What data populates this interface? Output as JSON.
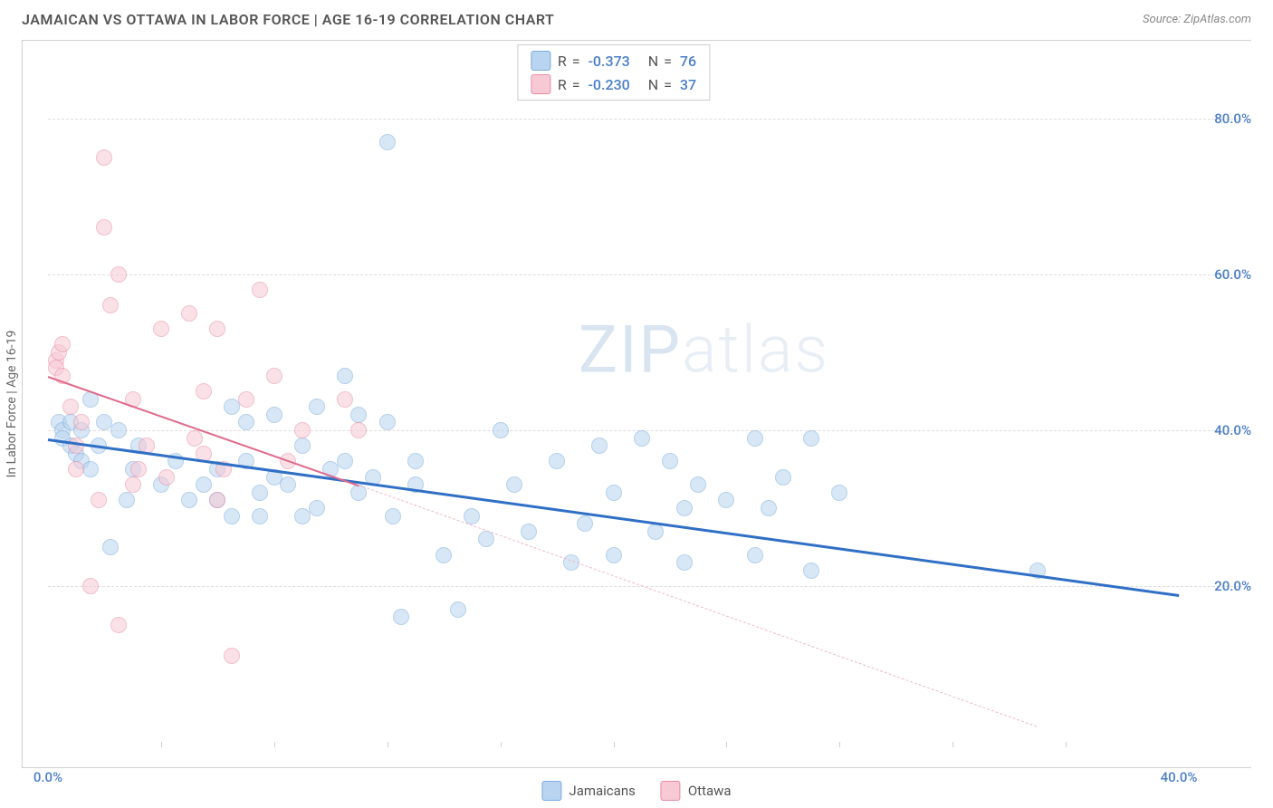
{
  "title": "JAMAICAN VS OTTAWA IN LABOR FORCE | AGE 16-19 CORRELATION CHART",
  "source": "Source: ZipAtlas.com",
  "watermark_bold": "ZIP",
  "watermark_light": "atlas",
  "chart": {
    "type": "scatter",
    "xlim": [
      0,
      40
    ],
    "ylim": [
      0,
      90
    ],
    "x_min_label": "0.0%",
    "x_max_label": "40.0%",
    "y_ticks": [
      20,
      40,
      60,
      80
    ],
    "y_tick_labels": [
      "20.0%",
      "40.0%",
      "60.0%",
      "80.0%"
    ],
    "x_tick_positions": [
      4,
      8,
      12,
      16,
      20,
      24,
      28,
      32,
      36
    ],
    "y_axis_label": "In Labor Force | Age 16-19",
    "background_color": "#ffffff",
    "grid_color": "#dddddd",
    "marker_radius": 9,
    "marker_opacity": 0.55,
    "series": [
      {
        "name": "Jamaicans",
        "color_fill": "#b8d4f0",
        "color_stroke": "#7aabdc",
        "R": "-0.373",
        "N": "76",
        "trend": {
          "x1": 0,
          "y1": 39,
          "x2": 40,
          "y2": 19,
          "color": "#2f6fc5",
          "width": 3
        },
        "points": [
          [
            0.4,
            41
          ],
          [
            0.5,
            40
          ],
          [
            0.5,
            39
          ],
          [
            0.8,
            41
          ],
          [
            0.8,
            38
          ],
          [
            1.0,
            37
          ],
          [
            1.2,
            40
          ],
          [
            1.2,
            36
          ],
          [
            1.5,
            35
          ],
          [
            1.8,
            38
          ],
          [
            2.0,
            41
          ],
          [
            2.2,
            25
          ],
          [
            2.5,
            40
          ],
          [
            3.0,
            35
          ],
          [
            3.2,
            38
          ],
          [
            4.0,
            33
          ],
          [
            4.5,
            36
          ],
          [
            5.0,
            31
          ],
          [
            5.5,
            33
          ],
          [
            6.0,
            35
          ],
          [
            6.0,
            31
          ],
          [
            6.5,
            29
          ],
          [
            6.5,
            43
          ],
          [
            7.0,
            36
          ],
          [
            7.0,
            41
          ],
          [
            7.5,
            32
          ],
          [
            7.5,
            29
          ],
          [
            8.0,
            42
          ],
          [
            8.0,
            34
          ],
          [
            8.5,
            33
          ],
          [
            9.0,
            38
          ],
          [
            9.0,
            29
          ],
          [
            9.5,
            43
          ],
          [
            9.5,
            30
          ],
          [
            10.0,
            35
          ],
          [
            10.5,
            47
          ],
          [
            10.5,
            36
          ],
          [
            11.0,
            32
          ],
          [
            11.0,
            42
          ],
          [
            11.5,
            34
          ],
          [
            12.0,
            41
          ],
          [
            12.0,
            77
          ],
          [
            12.2,
            29
          ],
          [
            12.5,
            16
          ],
          [
            13.0,
            36
          ],
          [
            13.0,
            33
          ],
          [
            14.0,
            24
          ],
          [
            14.5,
            17
          ],
          [
            15.0,
            29
          ],
          [
            15.5,
            26
          ],
          [
            16.0,
            40
          ],
          [
            16.5,
            33
          ],
          [
            17.0,
            27
          ],
          [
            18.0,
            36
          ],
          [
            18.5,
            23
          ],
          [
            19.0,
            28
          ],
          [
            19.5,
            38
          ],
          [
            20.0,
            32
          ],
          [
            20.0,
            24
          ],
          [
            21.0,
            39
          ],
          [
            21.5,
            27
          ],
          [
            22.0,
            36
          ],
          [
            22.5,
            30
          ],
          [
            22.5,
            23
          ],
          [
            23.0,
            33
          ],
          [
            24.0,
            31
          ],
          [
            25.0,
            24
          ],
          [
            25.0,
            39
          ],
          [
            25.5,
            30
          ],
          [
            26.0,
            34
          ],
          [
            27.0,
            39
          ],
          [
            27.0,
            22
          ],
          [
            28.0,
            32
          ],
          [
            35.0,
            22
          ],
          [
            1.5,
            44
          ],
          [
            2.8,
            31
          ]
        ]
      },
      {
        "name": "Ottawa",
        "color_fill": "#f7c9d4",
        "color_stroke": "#e88ba4",
        "R": "-0.230",
        "N": "37",
        "trend_solid": {
          "x1": 0,
          "y1": 47,
          "x2": 11,
          "y2": 33,
          "color": "#e06a8c",
          "width": 2.5
        },
        "trend_dash": {
          "x1": 11,
          "y1": 33,
          "x2": 35,
          "y2": 2,
          "color": "#f0b8c6",
          "width": 1.5
        },
        "points": [
          [
            0.3,
            49
          ],
          [
            0.3,
            48
          ],
          [
            0.4,
            50
          ],
          [
            0.5,
            47
          ],
          [
            0.5,
            51
          ],
          [
            0.8,
            43
          ],
          [
            1.0,
            38
          ],
          [
            1.0,
            35
          ],
          [
            1.2,
            41
          ],
          [
            1.5,
            20
          ],
          [
            1.8,
            31
          ],
          [
            2.0,
            75
          ],
          [
            2.0,
            66
          ],
          [
            2.2,
            56
          ],
          [
            2.5,
            60
          ],
          [
            2.5,
            15
          ],
          [
            3.0,
            33
          ],
          [
            3.0,
            44
          ],
          [
            3.2,
            35
          ],
          [
            3.5,
            38
          ],
          [
            4.0,
            53
          ],
          [
            4.2,
            34
          ],
          [
            5.0,
            55
          ],
          [
            5.2,
            39
          ],
          [
            5.5,
            37
          ],
          [
            5.5,
            45
          ],
          [
            6.0,
            53
          ],
          [
            6.0,
            31
          ],
          [
            6.2,
            35
          ],
          [
            6.5,
            11
          ],
          [
            7.0,
            44
          ],
          [
            7.5,
            58
          ],
          [
            8.0,
            47
          ],
          [
            8.5,
            36
          ],
          [
            9.0,
            40
          ],
          [
            10.5,
            44
          ],
          [
            11.0,
            40
          ]
        ]
      }
    ],
    "correlation_box": {
      "rows": [
        {
          "swatch_fill": "#b8d4f0",
          "swatch_stroke": "#7aabdc",
          "R": "-0.373",
          "N": "76"
        },
        {
          "swatch_fill": "#f7c9d4",
          "swatch_stroke": "#e88ba4",
          "R": "-0.230",
          "N": "37"
        }
      ]
    },
    "legend": [
      {
        "label": "Jamaicans",
        "fill": "#b8d4f0",
        "stroke": "#7aabdc"
      },
      {
        "label": "Ottawa",
        "fill": "#f7c9d4",
        "stroke": "#e88ba4"
      }
    ]
  }
}
